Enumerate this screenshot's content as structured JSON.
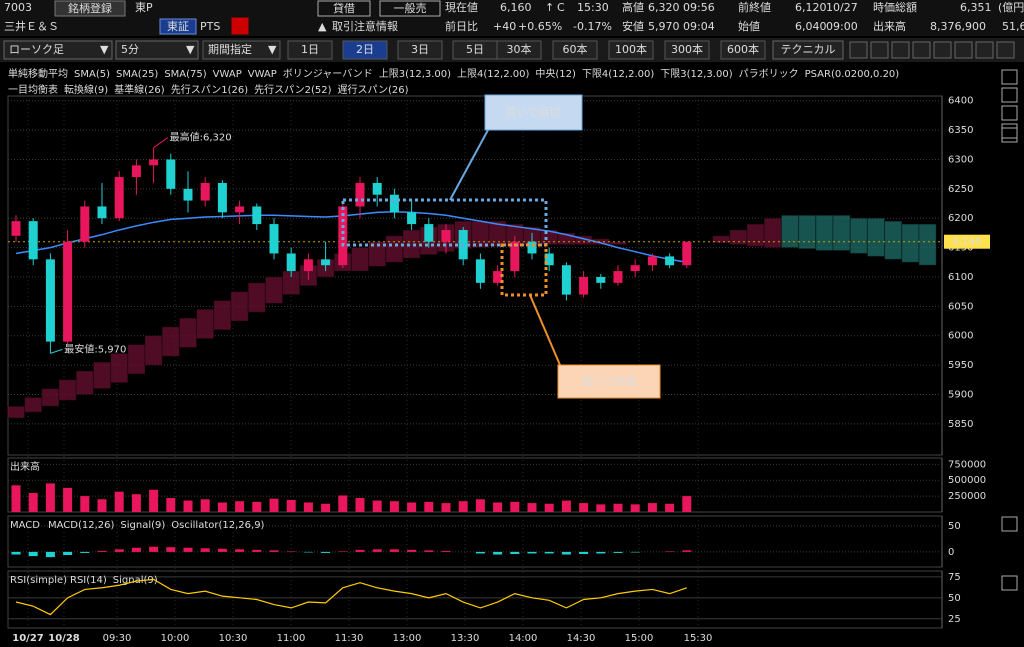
{
  "header": {
    "code": "7003",
    "register": "銘柄登録",
    "market": "東P",
    "name": "三井Ｅ＆Ｓ",
    "exchange": "東証",
    "pts": "PTS",
    "margin": "貸借",
    "sell_type": "一般売",
    "warning": "取引注意情報",
    "quote": {
      "price_label": "現在値",
      "price": "6,160",
      "arrow": "↑",
      "flag": "C",
      "time": "15:30",
      "change_label": "前日比",
      "change": "+40",
      "change_pct": "+0.65%",
      "pts_pct": "-0.17%",
      "high_label": "高値",
      "high": "6,320",
      "high_time": "09:56",
      "low_label": "安値",
      "low": "5,970",
      "low_time": "09:04",
      "prev_label": "前終値",
      "prev": "6,120",
      "prev_date": "10/27",
      "open_label": "始値",
      "open": "6,040",
      "open_time": "09:00",
      "cap_label": "時価総額",
      "cap": "6,351",
      "cap_unit": "(億円",
      "volume_label": "出来高",
      "volume": "8,376,900",
      "extra": "51,6"
    }
  },
  "toolbar": {
    "chart_type": "ローソク足",
    "interval": "5分",
    "period": "期間指定",
    "ranges": [
      "1日",
      "2日",
      "3日",
      "5日",
      "30本",
      "60本",
      "100本",
      "300本",
      "600本"
    ],
    "active_range": 1,
    "technical": "テクニカル"
  },
  "legend": {
    "row1": [
      {
        "text": "単純移動平均",
        "color": "#ffffff"
      },
      {
        "text": "SMA(5)",
        "color": "#ff5577"
      },
      {
        "text": "SMA(25)",
        "color": "#3d8cff"
      },
      {
        "text": "SMA(75)",
        "color": "#ff66dd"
      },
      {
        "text": "VWAP",
        "color": "#ffffff"
      },
      {
        "text": "VWAP",
        "color": "#33dd33"
      },
      {
        "text": "ボリンジャーバンド",
        "color": "#ffffff"
      },
      {
        "text": "上限3(12,3.00)",
        "color": "#ff5522"
      },
      {
        "text": "上限4(12,2.00)",
        "color": "#3d8cff"
      },
      {
        "text": "中央(12)",
        "color": "#ff5577"
      },
      {
        "text": "下限4(12,2.00)",
        "color": "#3d8cff"
      },
      {
        "text": "下限3(12,3.00)",
        "color": "#ff5522"
      },
      {
        "text": "パラボリック",
        "color": "#ffffff"
      },
      {
        "text": "PSAR(0.0200,0.20)",
        "color": "#ffcc00"
      }
    ],
    "row2": [
      {
        "text": "一目均衡表",
        "color": "#ffffff"
      },
      {
        "text": "転換線(9)",
        "color": "#ff66dd"
      },
      {
        "text": "基準線(26)",
        "color": "#ffcc00"
      },
      {
        "text": "先行スパン1(26)",
        "color": "#ff5522"
      },
      {
        "text": "先行スパン2(52)",
        "color": "#33ccaa"
      },
      {
        "text": "遅行スパン(26)",
        "color": "#3d8cff"
      }
    ]
  },
  "time_axis": [
    "10/27",
    "10/28",
    "09:30",
    "10:00",
    "10:30",
    "11:00",
    "11:30",
    "13:00",
    "13:30",
    "14:00",
    "14:30",
    "15:00",
    "15:30"
  ],
  "chart_data": [
    {
      "type": "candlestick",
      "ylim": [
        5797,
        6408
      ],
      "yticks": [
        6400,
        6350,
        6300,
        6250,
        6200,
        6150,
        6100,
        6050,
        6000,
        5950,
        5900,
        5850
      ],
      "up_color": "#e8175d",
      "down_color": "#1fd1d1",
      "open": [
        6170,
        6195,
        6130,
        5990,
        6160,
        6220,
        6200,
        6270,
        6290,
        6300,
        6250,
        6230,
        6260,
        6210,
        6220,
        6190,
        6140,
        6110,
        6130,
        6120,
        6220,
        6260,
        6240,
        6210,
        6190,
        6160,
        6180,
        6130,
        6090,
        6110,
        6160,
        6140,
        6120,
        6070,
        6100,
        6090,
        6110,
        6120,
        6135,
        6120
      ],
      "high": [
        6205,
        6200,
        6140,
        6180,
        6230,
        6260,
        6280,
        6300,
        6320,
        6310,
        6280,
        6270,
        6265,
        6230,
        6225,
        6200,
        6150,
        6140,
        6160,
        6230,
        6270,
        6270,
        6250,
        6230,
        6200,
        6190,
        6185,
        6140,
        6120,
        6170,
        6175,
        6150,
        6125,
        6110,
        6105,
        6120,
        6130,
        6140,
        6140,
        6160
      ],
      "low": [
        6160,
        6120,
        5970,
        5985,
        6150,
        6190,
        6195,
        6240,
        6260,
        6240,
        6210,
        6220,
        6200,
        6190,
        6180,
        6130,
        6100,
        6095,
        6110,
        6115,
        6200,
        6220,
        6200,
        6180,
        6150,
        6140,
        6120,
        6080,
        6085,
        6100,
        6130,
        6110,
        6060,
        6065,
        6080,
        6085,
        6100,
        6110,
        6115,
        6115
      ],
      "close": [
        6195,
        6130,
        5990,
        6160,
        6220,
        6200,
        6270,
        6290,
        6300,
        6250,
        6230,
        6260,
        6210,
        6220,
        6190,
        6140,
        6110,
        6130,
        6120,
        6220,
        6260,
        6240,
        6210,
        6190,
        6160,
        6180,
        6130,
        6090,
        6110,
        6160,
        6140,
        6120,
        6070,
        6100,
        6090,
        6110,
        6120,
        6135,
        6120,
        6160
      ],
      "series": [
        {
          "color": "#3d8cff",
          "values": [
            6140,
            6145,
            6150,
            6158,
            6165,
            6172,
            6180,
            6187,
            6193,
            6198,
            6200,
            6202,
            6203,
            6204,
            6205,
            6205,
            6204,
            6203,
            6202,
            6204,
            6207,
            6210,
            6211,
            6210,
            6208,
            6205,
            6200,
            6195,
            6190,
            6186,
            6182,
            6178,
            6172,
            6165,
            6158,
            6150,
            6143,
            6136,
            6130,
            6125
          ]
        }
      ],
      "cloud": {
        "colors": [
          "#6b1030",
          "#1f6f6a"
        ],
        "span1": [
          5880,
          5895,
          5910,
          5925,
          5940,
          5955,
          5970,
          5985,
          6000,
          6015,
          6030,
          6045,
          6060,
          6075,
          6090,
          6100,
          6110,
          6120,
          6130,
          6140,
          6150,
          6160,
          6170,
          6180,
          6185,
          6190,
          6195,
          6195,
          6195,
          6190,
          6185,
          6180,
          6175,
          6170,
          6165,
          6160,
          6155,
          6150,
          6150,
          6150,
          6160,
          6170,
          6180,
          6190,
          6200,
          6150,
          6148,
          6145,
          6145,
          6140,
          6135,
          6130,
          6125,
          6120
        ],
        "span2": [
          5860,
          5870,
          5880,
          5890,
          5900,
          5910,
          5920,
          5935,
          5950,
          5965,
          5980,
          5995,
          6010,
          6025,
          6040,
          6055,
          6070,
          6085,
          6100,
          6110,
          6110,
          6118,
          6125,
          6132,
          6138,
          6143,
          6148,
          6150,
          6152,
          6153,
          6154,
          6155,
          6155,
          6155,
          6155,
          6155,
          6155,
          6150,
          6150,
          6150,
          6160,
          6158,
          6155,
          6152,
          6150,
          6205,
          6205,
          6205,
          6205,
          6200,
          6200,
          6195,
          6190,
          6190
        ]
      },
      "high_note": "最高値:6,320",
      "low_note": "最安値:5,970",
      "last": {
        "value": 6160,
        "label": "6,160"
      },
      "stop_note": "買いで損切",
      "profit_note": "買いで利確"
    },
    {
      "type": "bar",
      "title": "出来高",
      "color": "#e8175d",
      "ylim": [
        0,
        850000
      ],
      "yticks": [
        750000,
        500000,
        250000
      ],
      "values": [
        420000,
        300000,
        450000,
        380000,
        250000,
        200000,
        320000,
        280000,
        350000,
        220000,
        180000,
        200000,
        150000,
        170000,
        160000,
        210000,
        190000,
        150000,
        130000,
        260000,
        220000,
        180000,
        170000,
        150000,
        160000,
        140000,
        170000,
        200000,
        150000,
        160000,
        140000,
        130000,
        180000,
        140000,
        120000,
        130000,
        120000,
        140000,
        130000,
        250000
      ]
    },
    {
      "type": "histogram",
      "title": "MACD",
      "legend": [
        {
          "text": "MACD(12,26)",
          "color": "#ffcc00"
        },
        {
          "text": "Signal(9)",
          "color": "#3d8cff"
        },
        {
          "text": "Oscillator(12,26,9)",
          "color": "#e8175d"
        }
      ],
      "colors": [
        "#e8175d",
        "#1fd1d1"
      ],
      "ylim": [
        -29,
        69
      ],
      "yticks": [
        50,
        0
      ],
      "values": [
        -5,
        -8,
        -10,
        -6,
        -2,
        2,
        5,
        8,
        10,
        9,
        8,
        7,
        6,
        5,
        4,
        3,
        1,
        -1,
        -2,
        1,
        4,
        5,
        5,
        4,
        3,
        2,
        0,
        -3,
        -5,
        -4,
        -3,
        -3,
        -5,
        -4,
        -3,
        -2,
        -1,
        0,
        1,
        3
      ]
    },
    {
      "type": "line",
      "title": "RSI(simple)",
      "legend": [
        {
          "text": "RSI(14)",
          "color": "#ffcc00"
        },
        {
          "text": "Signal(9)",
          "color": "#3d8cff"
        }
      ],
      "color": "#ffcc00",
      "ylim": [
        14,
        82
      ],
      "yticks": [
        75,
        50,
        25
      ],
      "values": [
        45,
        40,
        30,
        50,
        60,
        62,
        65,
        70,
        72,
        60,
        55,
        58,
        52,
        50,
        48,
        42,
        38,
        45,
        44,
        62,
        68,
        62,
        58,
        55,
        50,
        55,
        45,
        38,
        45,
        55,
        50,
        47,
        38,
        48,
        50,
        55,
        58,
        60,
        55,
        62
      ]
    }
  ]
}
